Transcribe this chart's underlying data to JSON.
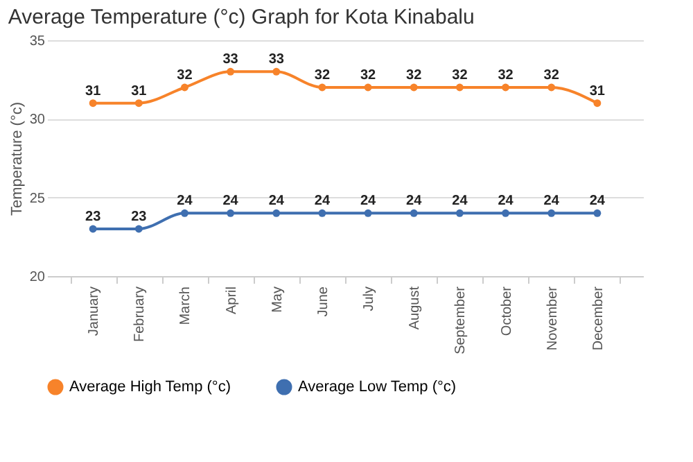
{
  "chart_data": {
    "type": "line",
    "title": "Average Temperature (°c) Graph for Kota Kinabalu",
    "ylabel": "Temperature (°c)",
    "categories": [
      "January",
      "February",
      "March",
      "April",
      "May",
      "June",
      "July",
      "August",
      "September",
      "October",
      "November",
      "December"
    ],
    "series": [
      {
        "name": "Average High Temp (°c)",
        "color": "#f7832a",
        "values": [
          31,
          31,
          32,
          33,
          33,
          32,
          32,
          32,
          32,
          32,
          32,
          31
        ]
      },
      {
        "name": "Average Low Temp (°c)",
        "color": "#3f6fb0",
        "values": [
          23,
          23,
          24,
          24,
          24,
          24,
          24,
          24,
          24,
          24,
          24,
          24
        ]
      }
    ],
    "ylim": [
      20,
      35
    ],
    "yticks": [
      20,
      25,
      30,
      35
    ],
    "grid": "y",
    "legend": "bottom",
    "marker": "circle",
    "line_style": "solid",
    "data_labels": true
  }
}
